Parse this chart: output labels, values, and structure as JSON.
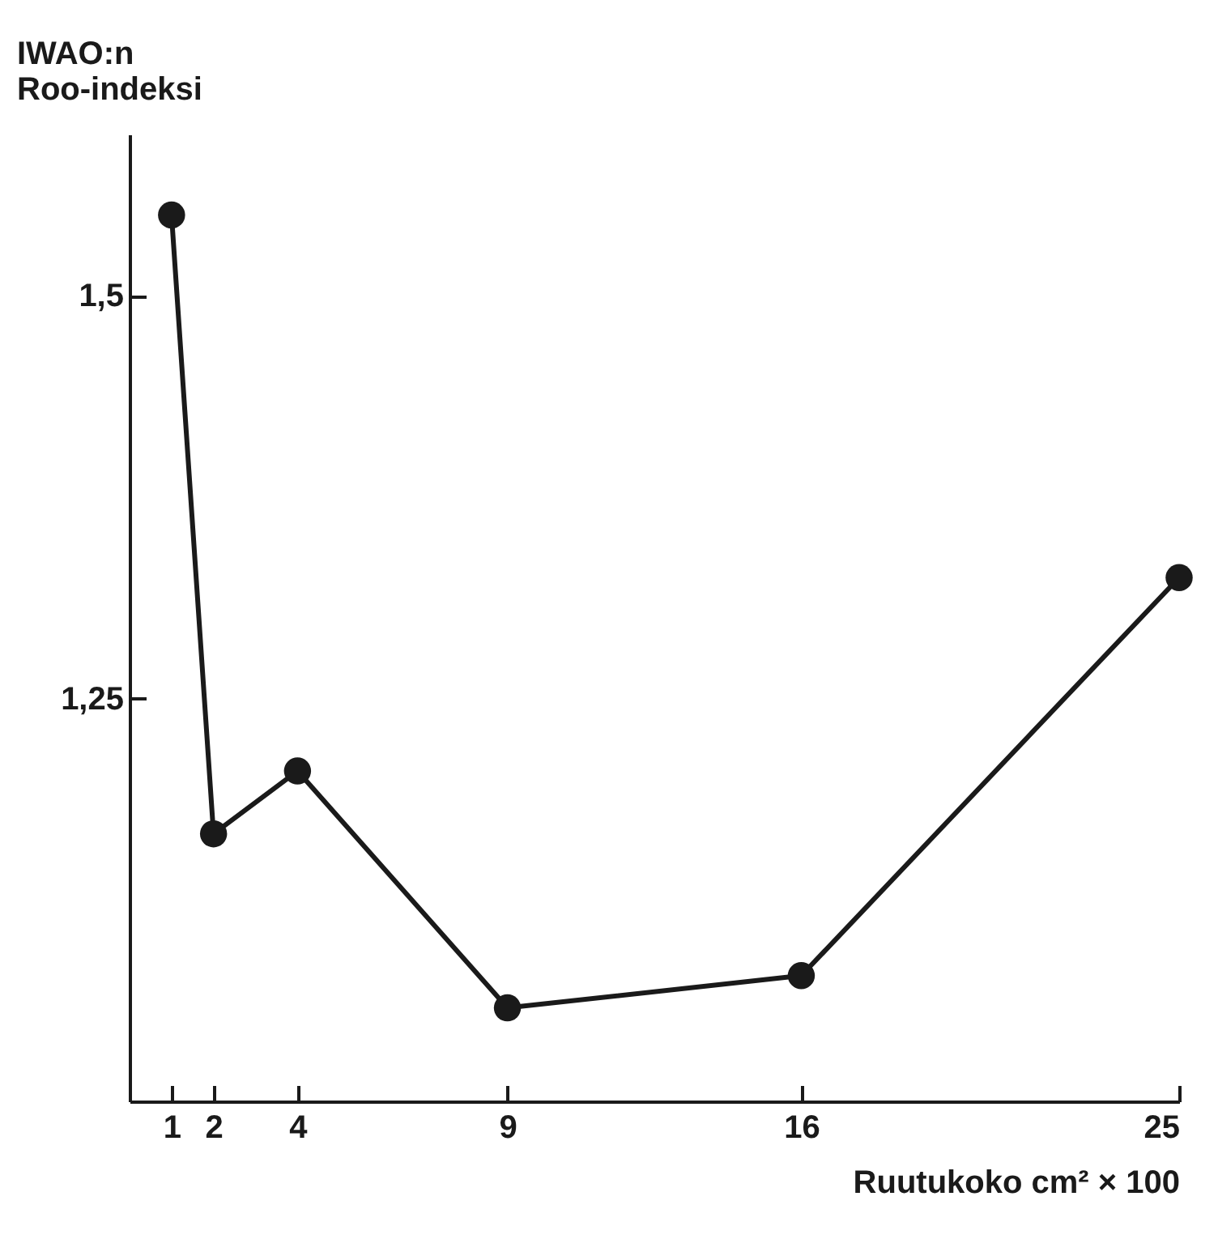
{
  "chart_data": {
    "type": "line",
    "ylabel": "IWAO:n\nRoo-indeksi",
    "xlabel": "Ruutukoko    cm² × 100",
    "x": [
      1,
      2,
      4,
      9,
      16,
      25
    ],
    "series": [
      {
        "color": "#1a1a1a",
        "values": [
          1.55,
          1.166,
          1.205,
          1.058,
          1.078,
          1.325
        ]
      }
    ],
    "xlim": [
      0,
      25
    ],
    "xticks": [
      1,
      2,
      4,
      9,
      16,
      25
    ],
    "ylim": [
      1.0,
      1.6
    ],
    "yticks": [
      {
        "value": 1.5,
        "label": "1,5"
      },
      {
        "value": 1.25,
        "label": "1,25"
      }
    ],
    "marker": "circle",
    "grid": false
  }
}
